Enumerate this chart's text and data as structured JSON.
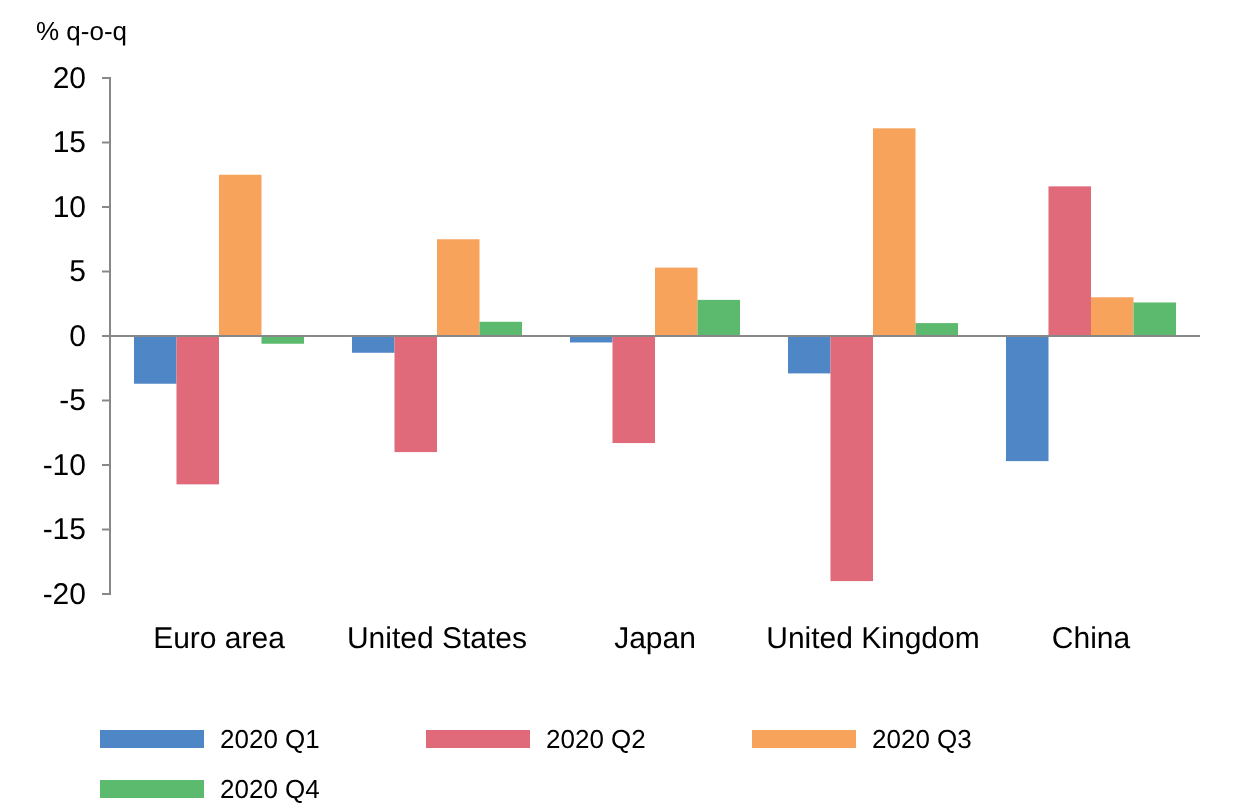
{
  "chart_data": {
    "type": "bar",
    "ylabel": "% q-o-q",
    "categories": [
      "Euro area",
      "United States",
      "Japan",
      "United Kingdom",
      "China"
    ],
    "series": [
      {
        "name": "2020 Q1",
        "color": "#4f86c6",
        "values": [
          -3.7,
          -1.3,
          -0.5,
          -2.9,
          -9.7
        ]
      },
      {
        "name": "2020 Q2",
        "color": "#e0697a",
        "values": [
          -11.5,
          -9.0,
          -8.3,
          -19.0,
          11.6
        ]
      },
      {
        "name": "2020 Q3",
        "color": "#f7a35c",
        "values": [
          12.5,
          7.5,
          5.3,
          16.1,
          3.0
        ]
      },
      {
        "name": "2020 Q4",
        "color": "#5cba6e",
        "values": [
          -0.6,
          1.1,
          2.8,
          1.0,
          2.6
        ]
      }
    ],
    "ylim": [
      -20,
      20
    ],
    "yticks": [
      -20,
      -15,
      -10,
      -5,
      0,
      5,
      10,
      15,
      20
    ],
    "legend": "bottom"
  }
}
